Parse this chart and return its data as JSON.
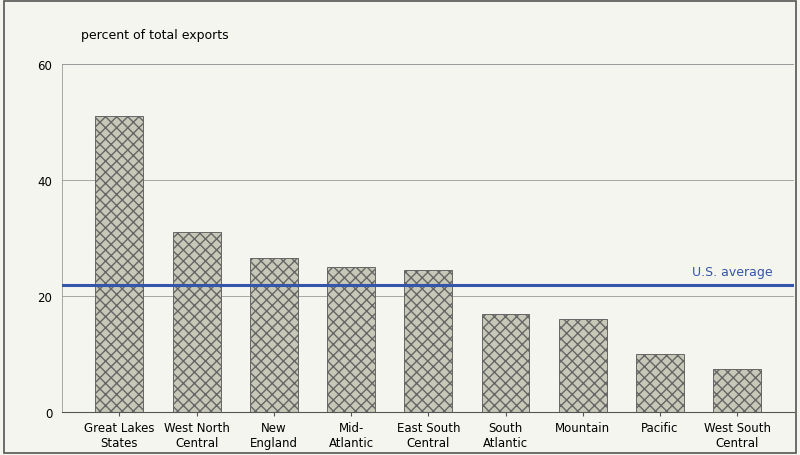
{
  "categories": [
    "Great Lakes\nStates",
    "West North\nCentral",
    "New\nEngland",
    "Mid-\nAtlantic",
    "East South\nCentral",
    "South\nAtlantic",
    "Mountain",
    "Pacific",
    "West South\nCentral"
  ],
  "values": [
    51,
    31,
    26.5,
    25,
    24.5,
    17,
    16,
    10,
    7.5
  ],
  "bar_facecolor": "#c8c8b8",
  "bar_edgecolor": "#666666",
  "bar_linewidth": 0.7,
  "us_average": 22,
  "us_average_color": "#3355aa",
  "us_average_label": "U.S. average",
  "us_avg_linewidth": 2.2,
  "ylabel": "percent of total exports",
  "ylim": [
    0,
    60
  ],
  "yticks": [
    0,
    20,
    40,
    60
  ],
  "background_color": "#f5f5f0",
  "grid_color": "#999999",
  "grid_linewidth": 0.6,
  "ylabel_fontsize": 9,
  "tick_fontsize": 8.5,
  "us_avg_fontsize": 9,
  "us_avg_label_color": "#3355aa",
  "outer_border_color": "#555555",
  "outer_border_linewidth": 1.2,
  "bar_width": 0.62
}
